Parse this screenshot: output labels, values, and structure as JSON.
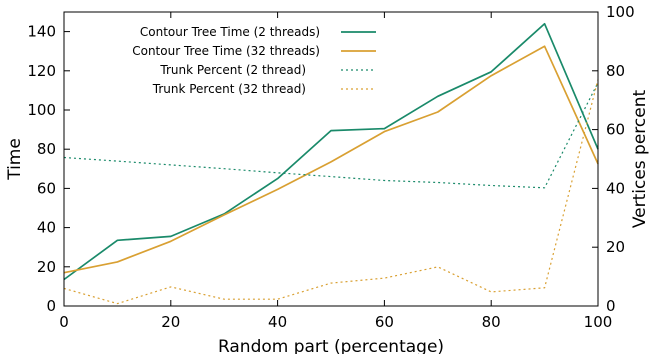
{
  "chart_data": {
    "type": "line",
    "title": "",
    "xlabel": "Random part (percentage)",
    "ylabel_left": "Time",
    "ylabel_right": "Vertices percent",
    "xlim": [
      0,
      100
    ],
    "ylim_left": [
      0,
      150
    ],
    "ylim_right": [
      0,
      100
    ],
    "x_ticks": [
      0,
      20,
      40,
      60,
      80,
      100
    ],
    "y_left_ticks": [
      0,
      20,
      40,
      60,
      80,
      100,
      120,
      140
    ],
    "y_right_ticks": [
      0,
      20,
      40,
      60,
      80,
      100
    ],
    "grid": false,
    "legend_position": "top-center",
    "x": [
      0,
      10,
      20,
      30,
      40,
      50,
      60,
      70,
      80,
      90,
      100
    ],
    "series": [
      {
        "name": "Contour Tree Time (2 threads)",
        "axis": "left",
        "style": "solid",
        "color": "#1a8a6a",
        "values": [
          13.5,
          33.5,
          35.5,
          47,
          65,
          89.5,
          90.5,
          107,
          119.5,
          144,
          80
        ]
      },
      {
        "name": "Contour Tree Time (32 threads)",
        "axis": "left",
        "style": "solid",
        "color": "#d9a032",
        "values": [
          17,
          22.5,
          33,
          46.5,
          59.5,
          73.5,
          89,
          99,
          117.5,
          132.5,
          72.5
        ]
      },
      {
        "name": "Trunk Percent (2 thread)",
        "axis": "right",
        "style": "dotted",
        "color": "#1a8a6a",
        "values": [
          50.5,
          49.3,
          48,
          46.7,
          45.3,
          44,
          42.7,
          42,
          41,
          40.2,
          76
        ]
      },
      {
        "name": "Trunk Percent (32 thread)",
        "axis": "right",
        "style": "dotted",
        "color": "#d9a032",
        "values": [
          6,
          0.8,
          6.5,
          2.3,
          2.3,
          7.8,
          9.5,
          13.3,
          4.8,
          6.2,
          77
        ]
      }
    ]
  }
}
